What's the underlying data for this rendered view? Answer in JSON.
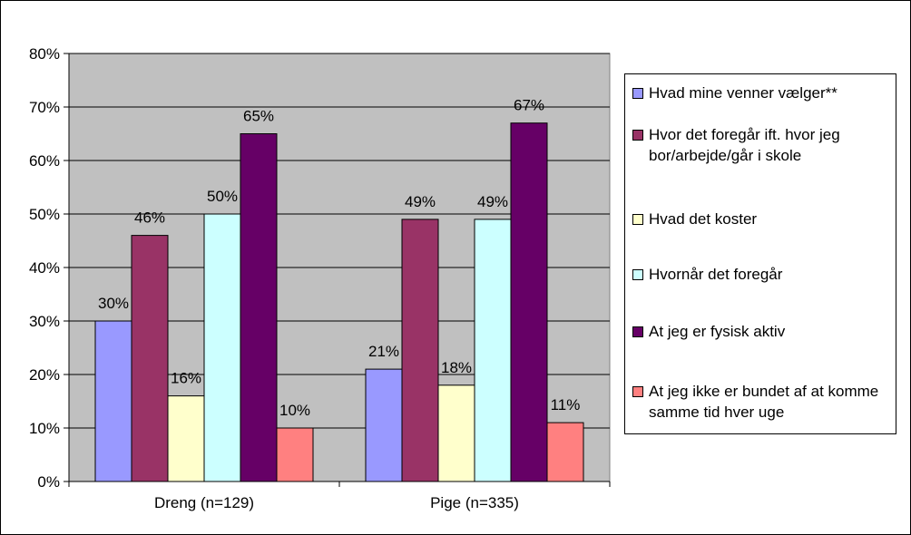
{
  "chart_data": {
    "type": "bar",
    "categories": [
      "Dreng (n=129)",
      "Pige (n=335)"
    ],
    "series": [
      {
        "name": "Hvad mine venner vælger**",
        "color": "#9999ff",
        "values": [
          30,
          21
        ],
        "labels": [
          "30%",
          "21%"
        ]
      },
      {
        "name": "Hvor det foregår ift. hvor jeg bor/arbejde/går i skole",
        "color": "#993366",
        "values": [
          46,
          49
        ],
        "labels": [
          "46%",
          "49%"
        ]
      },
      {
        "name": "Hvad det koster",
        "color": "#ffffcc",
        "values": [
          16,
          18
        ],
        "labels": [
          "16%",
          "18%"
        ]
      },
      {
        "name": "Hvornår det foregår",
        "color": "#ccffff",
        "values": [
          50,
          49
        ],
        "labels": [
          "50%",
          "49%"
        ]
      },
      {
        "name": "At jeg er fysisk aktiv",
        "color": "#660066",
        "values": [
          65,
          67
        ],
        "labels": [
          "65%",
          "67%"
        ]
      },
      {
        "name": "At jeg ikke er bundet af at komme samme tid hver uge",
        "color": "#ff8080",
        "values": [
          10,
          11
        ],
        "labels": [
          "10%",
          "11%"
        ]
      }
    ],
    "ylim": [
      0,
      80
    ],
    "yticks": [
      0,
      10,
      20,
      30,
      40,
      50,
      60,
      70,
      80
    ],
    "ytick_labels": [
      "0%",
      "10%",
      "20%",
      "30%",
      "40%",
      "50%",
      "60%",
      "70%",
      "80%"
    ],
    "grid": true,
    "plot_background": "#c0c0c0",
    "legend_position": "right",
    "title": "",
    "xlabel": "",
    "ylabel": ""
  }
}
